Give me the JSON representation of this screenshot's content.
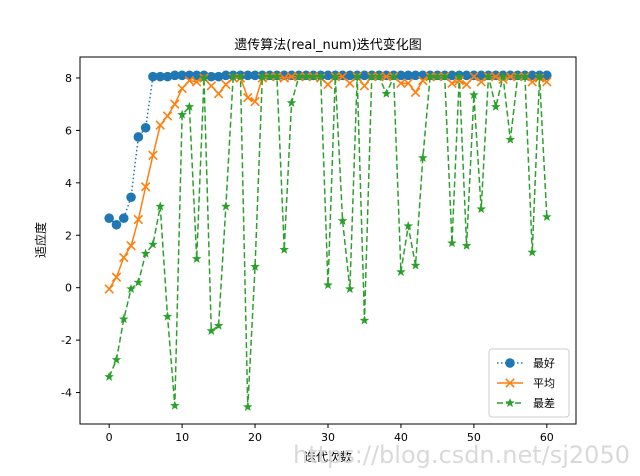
{
  "chart_data": {
    "type": "line",
    "title": "遗传算法(real_num)迭代变化图",
    "xlabel": "迭代次数",
    "ylabel": "适应度",
    "xlim": [
      -4,
      64
    ],
    "ylim": [
      -5.2,
      8.8
    ],
    "xticks": [
      0,
      10,
      20,
      30,
      40,
      50,
      60
    ],
    "yticks": [
      -4,
      -2,
      0,
      2,
      4,
      6,
      8
    ],
    "grid": false,
    "legend_position": "lower-right",
    "x": [
      0,
      1,
      2,
      3,
      4,
      5,
      6,
      7,
      8,
      9,
      10,
      11,
      12,
      13,
      14,
      15,
      16,
      17,
      18,
      19,
      20,
      21,
      22,
      23,
      24,
      25,
      26,
      27,
      28,
      29,
      30,
      31,
      32,
      33,
      34,
      35,
      36,
      37,
      38,
      39,
      40,
      41,
      42,
      43,
      44,
      45,
      46,
      47,
      48,
      49,
      50,
      51,
      52,
      53,
      54,
      55,
      56,
      57,
      58,
      59,
      60
    ],
    "series": [
      {
        "name": "最好",
        "color": "#1f77b4",
        "line_style": "dotted",
        "marker": "circle",
        "values": [
          2.65,
          2.4,
          2.65,
          3.45,
          5.75,
          6.1,
          8.05,
          8.05,
          8.05,
          8.1,
          8.1,
          8.1,
          8.1,
          8.1,
          8.05,
          8.05,
          8.1,
          8.1,
          8.1,
          8.1,
          8.1,
          8.1,
          8.1,
          8.1,
          8.1,
          8.1,
          8.1,
          8.1,
          8.1,
          8.1,
          8.1,
          8.1,
          8.1,
          8.1,
          8.1,
          8.1,
          8.1,
          8.1,
          8.1,
          8.1,
          8.1,
          8.1,
          8.1,
          8.1,
          8.1,
          8.1,
          8.1,
          8.1,
          8.1,
          8.1,
          8.1,
          8.1,
          8.1,
          8.1,
          8.1,
          8.1,
          8.1,
          8.1,
          8.1,
          8.1,
          8.1
        ]
      },
      {
        "name": "平均",
        "color": "#ff7f0e",
        "line_style": "solid",
        "marker": "x",
        "values": [
          -0.05,
          0.4,
          1.15,
          1.6,
          2.6,
          3.85,
          5.05,
          6.2,
          6.55,
          7.0,
          7.6,
          7.9,
          7.85,
          8.0,
          7.7,
          7.4,
          7.75,
          8.0,
          8.0,
          7.25,
          7.1,
          8.0,
          8.05,
          8.05,
          8.0,
          8.05,
          8.05,
          8.05,
          8.05,
          8.0,
          7.75,
          8.05,
          8.05,
          7.8,
          8.05,
          7.7,
          8.05,
          8.05,
          8.05,
          8.05,
          7.8,
          7.8,
          7.45,
          7.9,
          8.05,
          8.05,
          8.05,
          7.8,
          7.9,
          7.75,
          8.05,
          7.85,
          8.05,
          8.05,
          7.95,
          8.05,
          8.05,
          8.05,
          7.85,
          8.0,
          7.85
        ]
      },
      {
        "name": "最差",
        "color": "#2ca02c",
        "line_style": "dashed",
        "marker": "star",
        "values": [
          -3.4,
          -2.75,
          -1.2,
          -0.05,
          0.2,
          1.3,
          1.65,
          3.1,
          -1.1,
          -4.5,
          6.6,
          6.9,
          1.1,
          8.0,
          -1.65,
          -1.45,
          3.1,
          8.05,
          8.05,
          -4.55,
          0.8,
          8.05,
          8.05,
          8.05,
          1.45,
          7.05,
          8.05,
          8.05,
          8.05,
          8.05,
          0.1,
          8.05,
          2.55,
          -0.05,
          8.05,
          -1.25,
          8.05,
          8.05,
          7.4,
          8.05,
          0.6,
          2.35,
          0.85,
          4.95,
          8.05,
          8.05,
          8.05,
          1.7,
          8.05,
          1.6,
          7.35,
          3.0,
          8.05,
          6.9,
          8.05,
          5.65,
          8.05,
          8.05,
          1.35,
          8.05,
          2.7
        ]
      }
    ]
  },
  "watermark": "https://blog.csdn.net/sj2050"
}
